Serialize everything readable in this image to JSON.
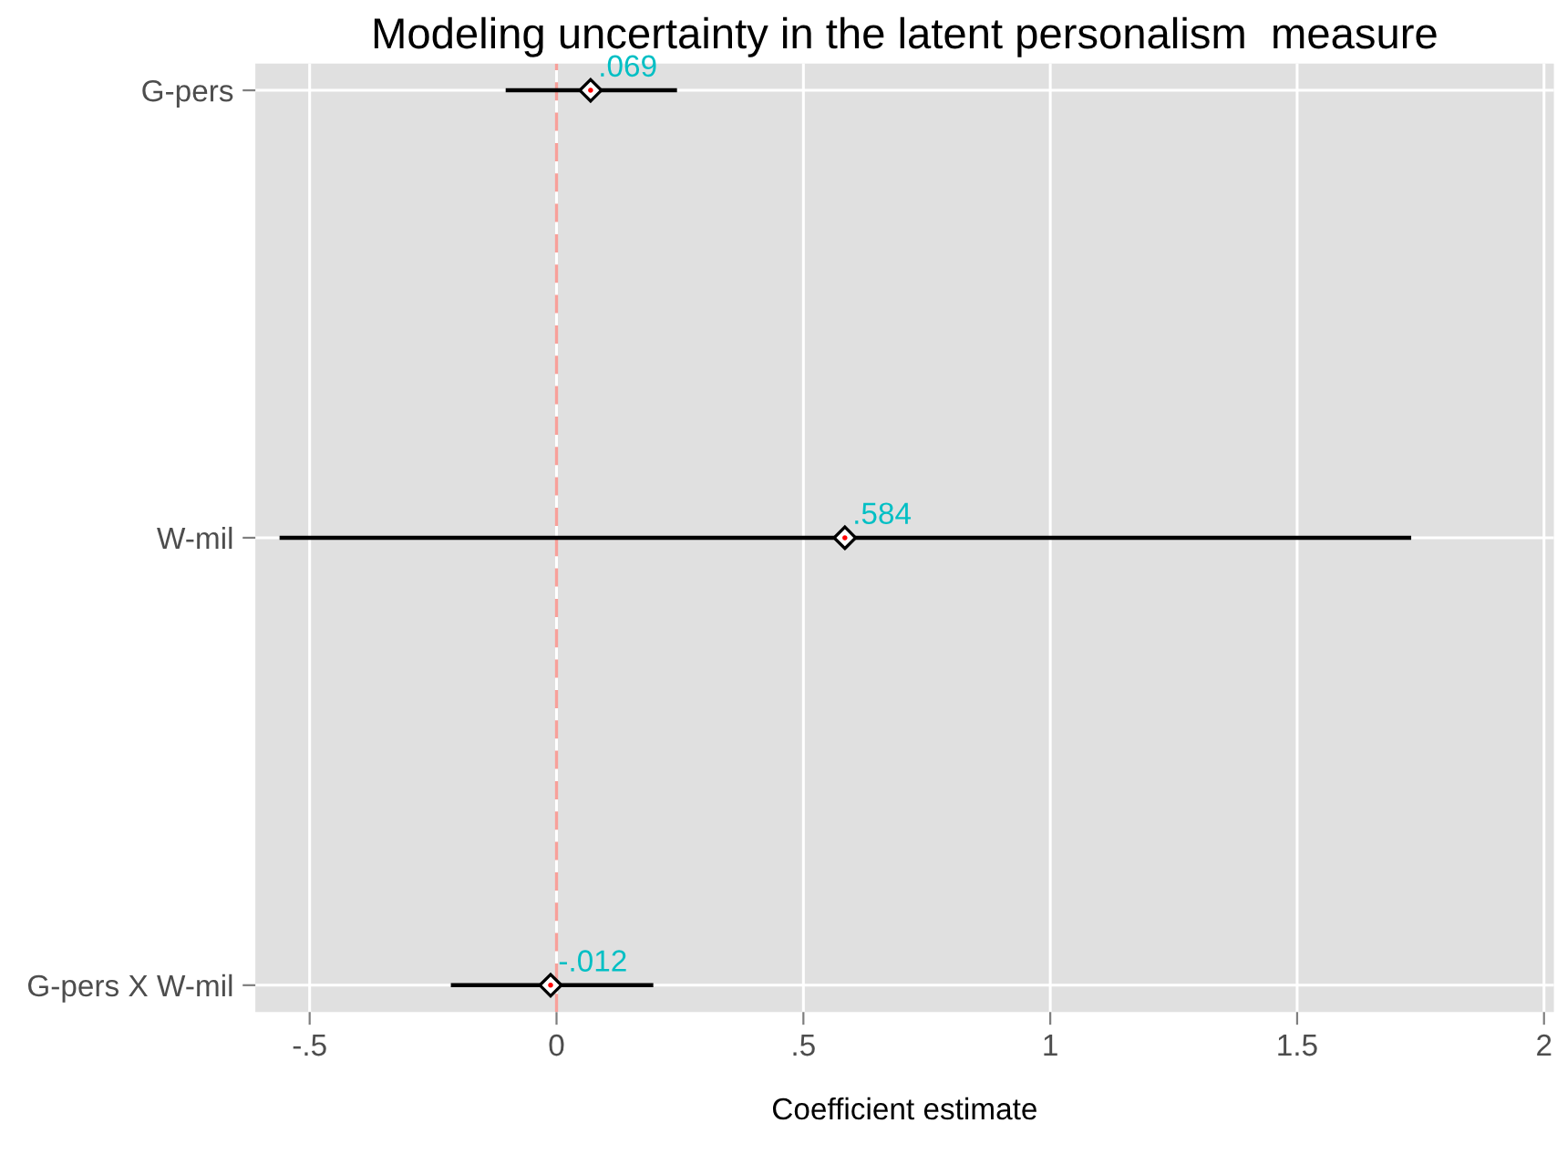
{
  "chart_data": {
    "type": "scatter",
    "orientation": "horizontal",
    "title": "Modeling uncertainty in the latent personalism  measure",
    "xlabel": "Coefficient estimate",
    "categories": [
      "G-pers",
      "W-mil",
      "G-pers X W-mil"
    ],
    "values": [
      0.069,
      0.584,
      -0.012
    ],
    "errors": [
      [
        -0.103,
        0.244
      ],
      [
        -0.561,
        1.731
      ],
      [
        -0.214,
        0.196
      ]
    ],
    "value_labels": [
      ".069",
      ".584",
      "-.012"
    ],
    "color": "#ff0000",
    "marker": "diamond",
    "xlim": [
      -0.61,
      2.02
    ],
    "xticks": [
      {
        "value": -0.5,
        "label": "-.5"
      },
      0,
      {
        "value": 0.5,
        "label": ".5"
      },
      1,
      1.5,
      2
    ],
    "ref_lines": [
      {
        "axis": "x",
        "value": 0,
        "color": "#f8a09a",
        "line_style": "dashed"
      }
    ],
    "grid": true
  }
}
